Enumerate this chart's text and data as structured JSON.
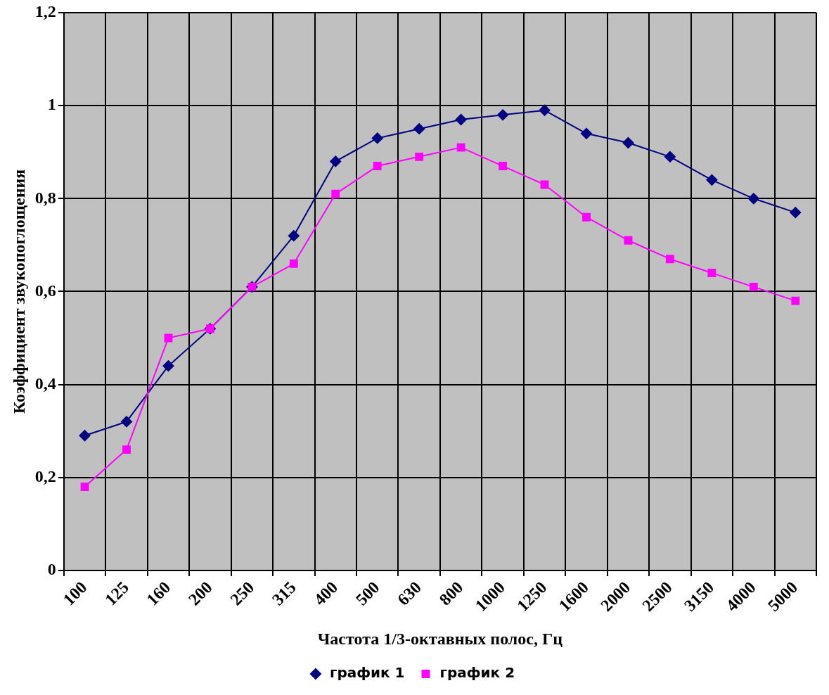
{
  "chart_data": {
    "type": "line",
    "xlabel": "Частота 1/3-октавных полос, Гц",
    "ylabel": "Коэффициент звукопоглощения",
    "categories": [
      "100",
      "125",
      "160",
      "200",
      "250",
      "315",
      "400",
      "500",
      "630",
      "800",
      "1000",
      "1250",
      "1600",
      "2000",
      "2500",
      "3150",
      "4000",
      "5000"
    ],
    "series": [
      {
        "name": "график 1",
        "color": "#000080",
        "marker": "diamond",
        "values": [
          0.29,
          0.32,
          0.44,
          0.52,
          0.61,
          0.72,
          0.88,
          0.93,
          0.95,
          0.97,
          0.98,
          0.99,
          0.94,
          0.92,
          0.89,
          0.84,
          0.8,
          0.77
        ]
      },
      {
        "name": "график 2",
        "color": "#ff00ff",
        "marker": "square",
        "values": [
          0.18,
          0.26,
          0.5,
          0.52,
          0.61,
          0.66,
          0.81,
          0.87,
          0.89,
          0.91,
          0.87,
          0.83,
          0.76,
          0.71,
          0.67,
          0.64,
          0.61,
          0.58
        ]
      }
    ],
    "ylim": [
      0,
      1.2
    ],
    "yticks": [
      0,
      {
        "value": 0.2,
        "label": "0,2"
      },
      {
        "value": 0.4,
        "label": "0,4"
      },
      {
        "value": 0.6,
        "label": "0,6"
      },
      {
        "value": 0.8,
        "label": "0,8"
      },
      1,
      {
        "value": 1.2,
        "label": "1,2"
      }
    ],
    "grid": true,
    "legend": "bottom",
    "line_style": "solid"
  }
}
